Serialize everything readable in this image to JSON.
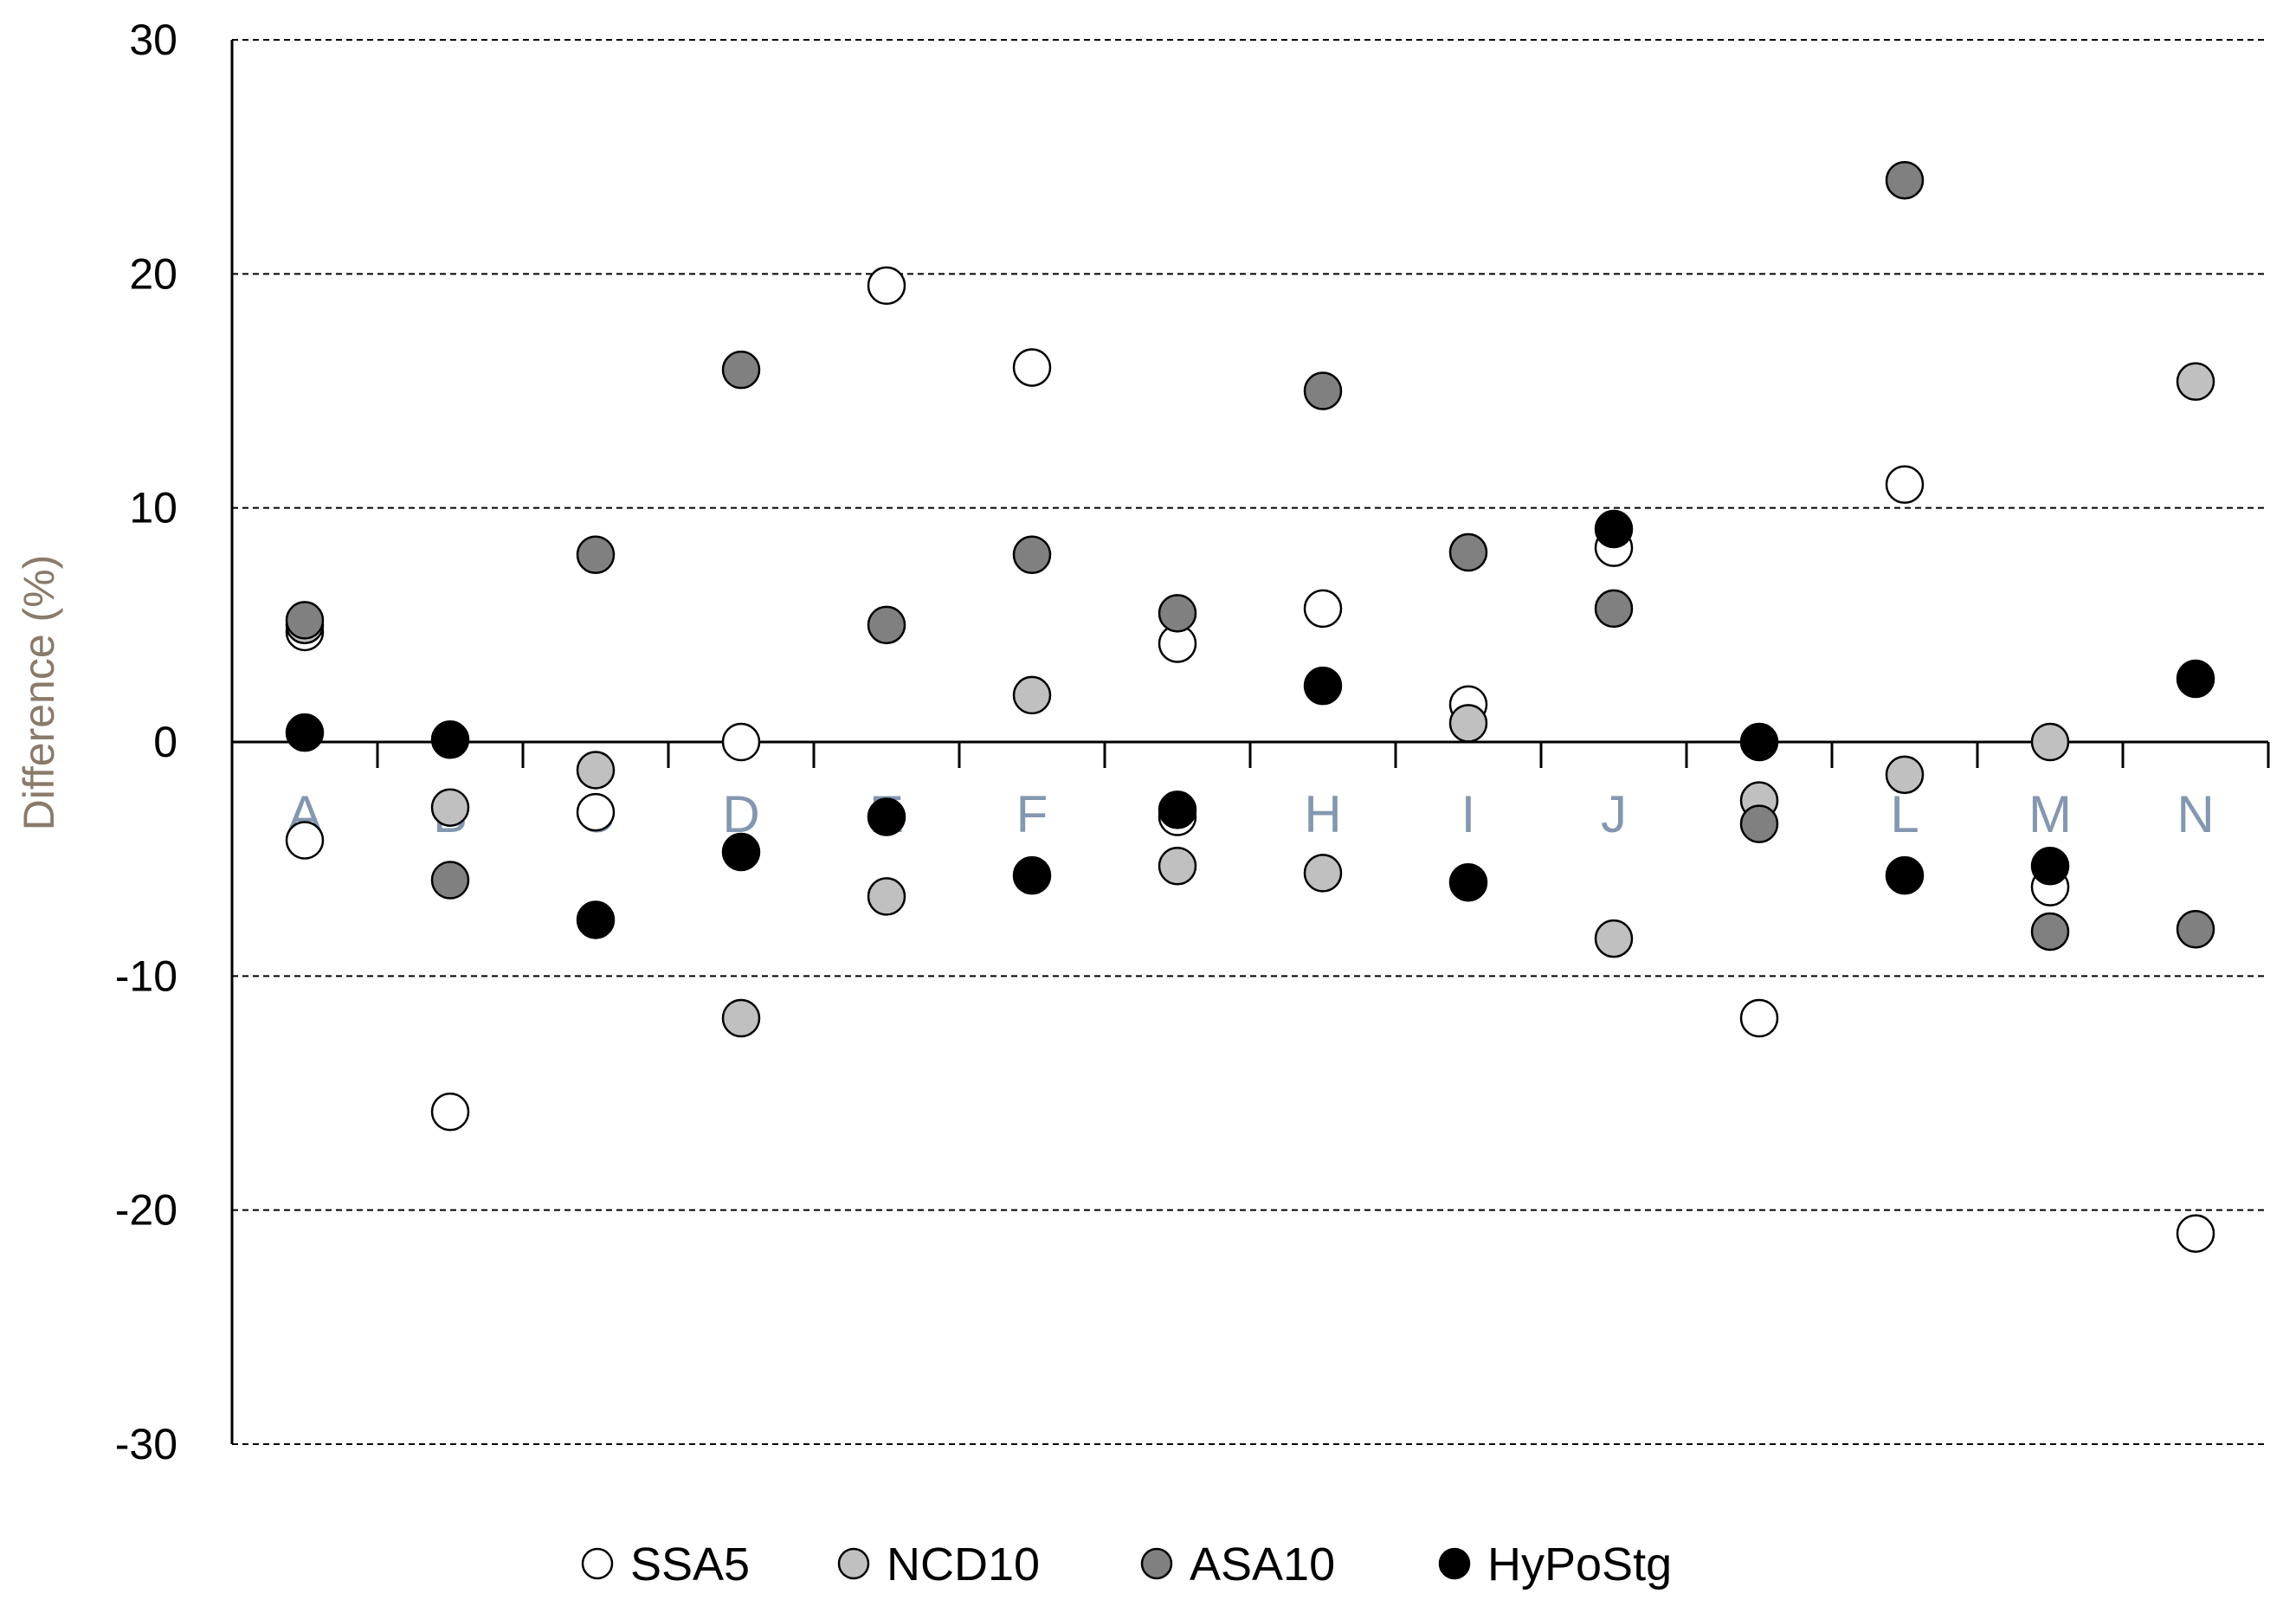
{
  "chart_data": {
    "type": "scatter",
    "title": "",
    "xlabel": "",
    "ylabel": "Difference (%)",
    "ylim": [
      -30,
      30
    ],
    "yticks": [
      30,
      20,
      10,
      0,
      -10,
      -20,
      -30
    ],
    "grid": true,
    "legend_position": "bottom",
    "categories": [
      "A",
      "B",
      "C",
      "D",
      "E",
      "F",
      "G",
      "H",
      "I",
      "J",
      "K",
      "L",
      "M",
      "N"
    ],
    "series": [
      {
        "name": "SSA5",
        "color": "#ffffff",
        "values": [
          [
            4.7,
            -4.2
          ],
          [
            -15.8
          ],
          [
            -3.0
          ],
          [
            0.0
          ],
          [
            19.5
          ],
          [
            16.0
          ],
          [
            4.2,
            -3.2
          ],
          [
            5.7
          ],
          [
            1.6
          ],
          [
            8.3
          ],
          [
            -11.8
          ],
          [
            11.0
          ],
          [
            -6.2
          ],
          [
            -21.0
          ]
        ]
      },
      {
        "name": "NCD10",
        "color": "#c0c0c0",
        "values": [
          [
            5.0
          ],
          [
            -2.8
          ],
          [
            -1.2
          ],
          [
            -11.8
          ],
          [
            -6.6
          ],
          [
            2.0
          ],
          [
            -5.3
          ],
          [
            -5.6
          ],
          [
            0.8
          ],
          [
            -8.4
          ],
          [
            -2.5
          ],
          [
            -1.4
          ],
          [
            0.0
          ],
          [
            15.4
          ]
        ]
      },
      {
        "name": "ASA10",
        "color": "#808080",
        "values": [
          [
            5.2
          ],
          [
            -5.9
          ],
          [
            8.0
          ],
          [
            15.9
          ],
          [
            5.0
          ],
          [
            8.0
          ],
          [
            5.5
          ],
          [
            15.0
          ],
          [
            8.1
          ],
          [
            5.7
          ],
          [
            -3.5
          ],
          [
            24.0
          ],
          [
            -8.1
          ],
          [
            -8.0
          ]
        ]
      },
      {
        "name": "HyPoStg",
        "color": "#000000",
        "values": [
          [
            0.4
          ],
          [
            0.1
          ],
          [
            -7.6
          ],
          [
            -4.7
          ],
          [
            -3.2
          ],
          [
            -5.7
          ],
          [
            -2.9
          ],
          [
            2.4
          ],
          [
            -6.0
          ],
          [
            9.1
          ],
          [
            0.0
          ],
          [
            -5.7
          ],
          [
            -5.3
          ],
          [
            2.7
          ]
        ]
      }
    ]
  }
}
